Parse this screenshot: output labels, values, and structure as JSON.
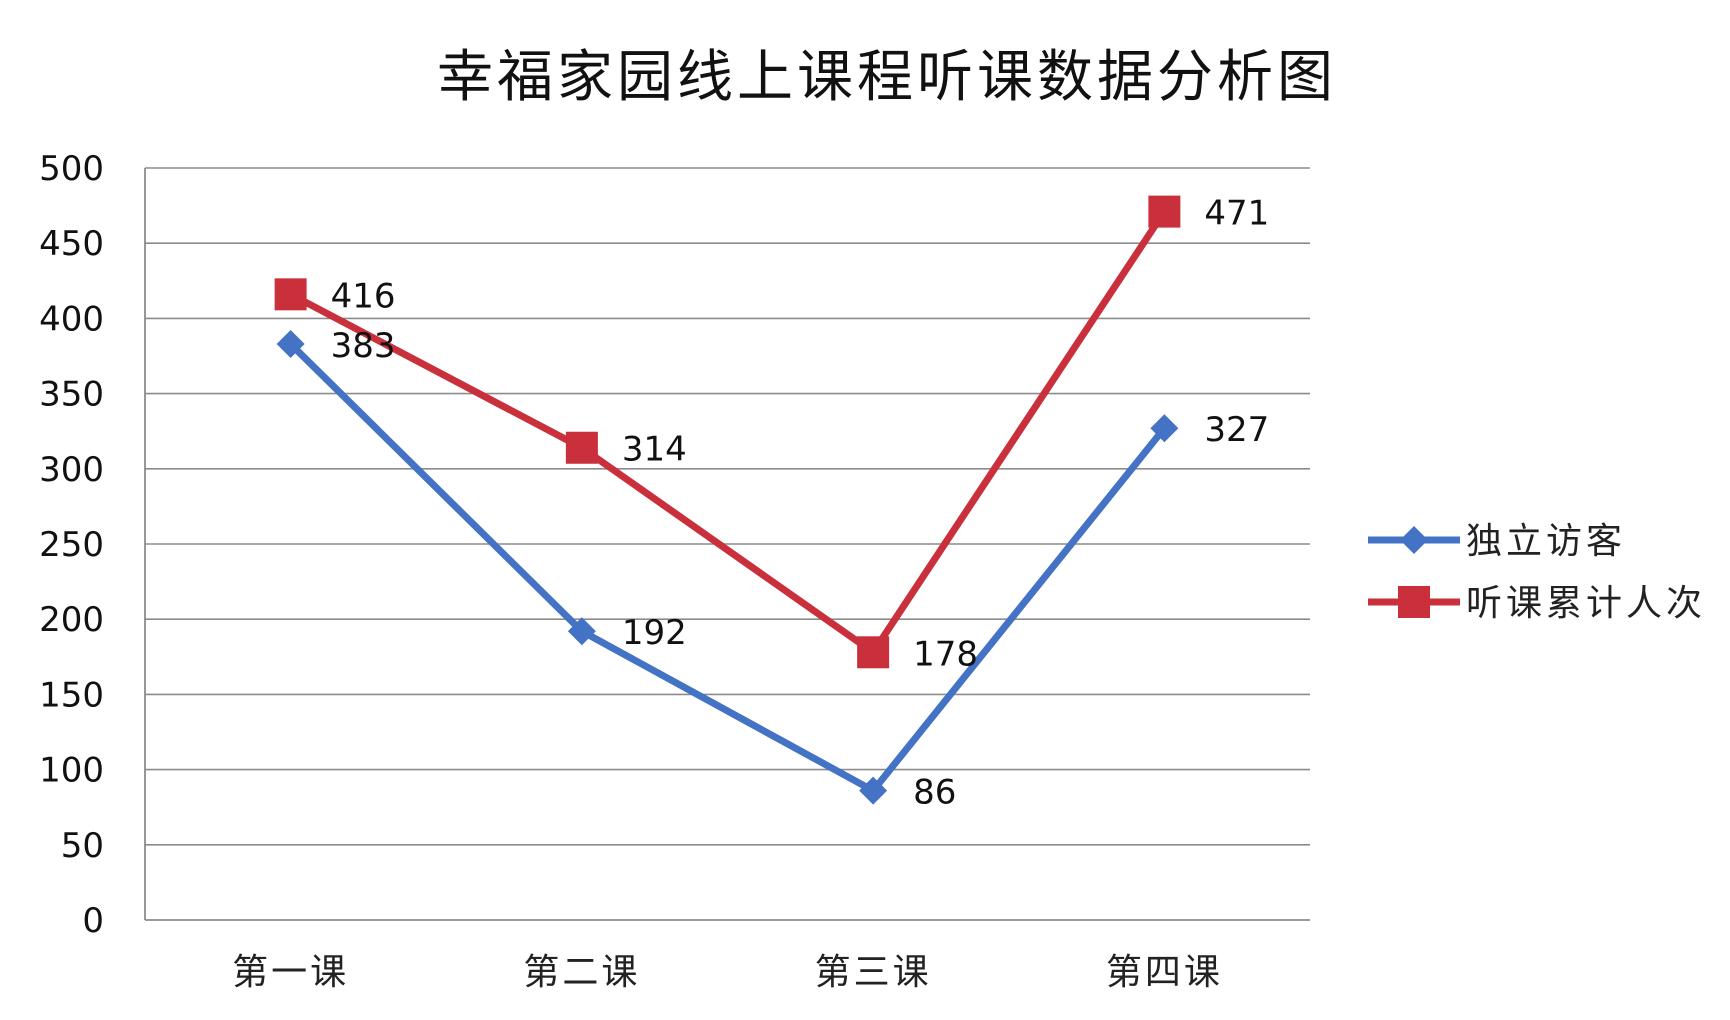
{
  "chart_data": {
    "type": "line",
    "title": "幸福家园线上课程听课数据分析图",
    "categories": [
      "第一课",
      "第二课",
      "第三课",
      "第四课"
    ],
    "series": [
      {
        "name": "独立访客",
        "values": [
          383,
          192,
          86,
          327
        ],
        "color": "#4472C4",
        "marker": "diamond"
      },
      {
        "name": "听课累计人次",
        "values": [
          416,
          314,
          178,
          471
        ],
        "color": "#C9303C",
        "marker": "square"
      }
    ],
    "ylim": [
      0,
      500
    ],
    "yticks": [
      0,
      50,
      100,
      150,
      200,
      250,
      300,
      350,
      400,
      450,
      500
    ],
    "grid": true,
    "legend": "right",
    "data_labels": true,
    "xlabel": "",
    "ylabel": ""
  }
}
